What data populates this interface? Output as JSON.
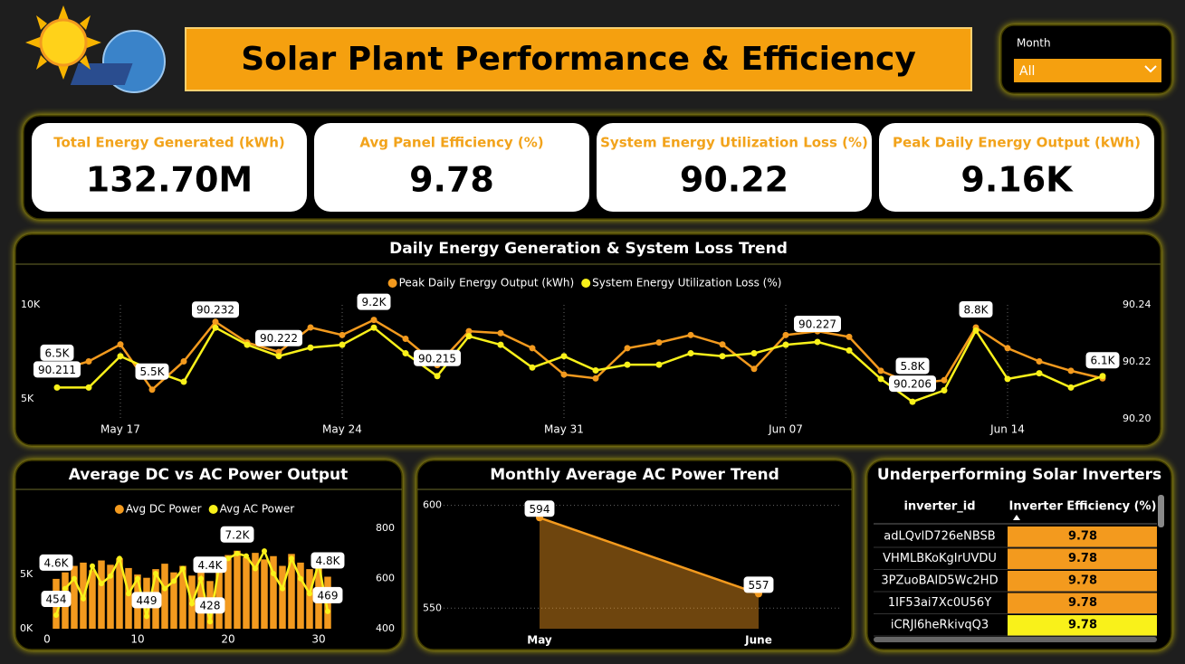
{
  "header": {
    "title": "Solar Plant Performance & Efficiency"
  },
  "filter": {
    "label": "Month",
    "value": "All"
  },
  "kpis": [
    {
      "label": "Total Energy Generated (kWh)",
      "value": "132.70M"
    },
    {
      "label": "Avg Panel Efficiency (%)",
      "value": "9.78"
    },
    {
      "label": "System Energy Utilization Loss (%)",
      "value": "90.22"
    },
    {
      "label": "Peak Daily Energy Output (kWh)",
      "value": "9.16K"
    }
  ],
  "chart_data": [
    {
      "type": "line",
      "title": "Daily Energy Generation & System Loss Trend",
      "categories": [
        "May 15",
        "May 16",
        "May 17",
        "May 18",
        "May 19",
        "May 20",
        "May 21",
        "May 22",
        "May 23",
        "May 24",
        "May 25",
        "May 26",
        "May 27",
        "May 28",
        "May 29",
        "May 30",
        "May 31",
        "Jun 01",
        "Jun 02",
        "Jun 03",
        "Jun 04",
        "Jun 05",
        "Jun 06",
        "Jun 07",
        "Jun 08",
        "Jun 09",
        "Jun 10",
        "Jun 11",
        "Jun 12",
        "Jun 13",
        "Jun 14",
        "Jun 15",
        "Jun 16",
        "Jun 17"
      ],
      "series": [
        {
          "name": "Peak Daily Energy Output (kWh)",
          "color": "#f39a1e",
          "values": [
            6500,
            7000,
            7900,
            5500,
            7000,
            9100,
            8000,
            7500,
            8800,
            8400,
            9200,
            8200,
            6800,
            8600,
            8500,
            7700,
            6300,
            6100,
            7700,
            8000,
            8400,
            7900,
            6600,
            8400,
            8600,
            8300,
            6500,
            5800,
            6000,
            8800,
            7700,
            7000,
            6500,
            6100
          ],
          "value_labels": [
            "6.5K",
            null,
            null,
            "5.5K",
            null,
            null,
            null,
            null,
            null,
            null,
            "9.2K",
            null,
            null,
            null,
            null,
            null,
            null,
            null,
            null,
            null,
            null,
            null,
            null,
            null,
            null,
            null,
            null,
            "5.8K",
            null,
            "8.8K",
            null,
            null,
            null,
            "6.1K"
          ]
        },
        {
          "name": "System Energy Utilization Loss (%)",
          "color": "#f9f11a",
          "axis": "y2",
          "values": [
            90.211,
            90.211,
            90.222,
            90.217,
            90.213,
            90.232,
            90.226,
            90.222,
            90.225,
            90.226,
            90.232,
            90.223,
            90.215,
            90.229,
            90.226,
            90.218,
            90.222,
            90.217,
            90.219,
            90.219,
            90.223,
            90.222,
            90.223,
            90.226,
            90.227,
            90.224,
            90.214,
            90.206,
            90.21,
            90.231,
            90.214,
            90.216,
            90.211,
            90.215
          ],
          "value_labels": [
            "90.211",
            null,
            null,
            null,
            null,
            "90.232",
            null,
            "90.222",
            null,
            null,
            null,
            null,
            "90.215",
            null,
            null,
            null,
            null,
            null,
            null,
            null,
            null,
            null,
            null,
            null,
            "90.227",
            null,
            null,
            "90.206",
            null,
            null,
            null,
            null,
            null,
            null
          ]
        }
      ],
      "ylim": [
        3950,
        10000
      ],
      "yticks": [
        {
          "value": 5000,
          "label": "5K"
        },
        {
          "value": 10000,
          "label": "10K"
        }
      ],
      "y2lim": [
        90.2,
        90.24
      ],
      "y2ticks": [
        {
          "value": 90.2,
          "label": "90.20"
        },
        90.22,
        90.24
      ],
      "grid": true,
      "legend": "top"
    },
    {
      "type": "combo",
      "title": "Average DC vs AC Power Output",
      "x": [
        1,
        2,
        3,
        4,
        5,
        6,
        7,
        8,
        9,
        10,
        11,
        12,
        13,
        14,
        15,
        16,
        17,
        18,
        19,
        20,
        21,
        22,
        23,
        24,
        25,
        26,
        27,
        28,
        29,
        30,
        31
      ],
      "series": [
        {
          "name": "Avg DC Power",
          "color": "#f39a1e",
          "type": "bar",
          "values": [
            4600,
            5200,
            5800,
            6100,
            5400,
            6300,
            5900,
            6500,
            5600,
            5000,
            4700,
            5500,
            6000,
            5200,
            5800,
            4900,
            6200,
            4400,
            5900,
            6800,
            7200,
            6600,
            7000,
            6400,
            6700,
            5800,
            6900,
            6100,
            5500,
            6300,
            4800
          ],
          "value_labels": [
            "4.6K",
            null,
            null,
            null,
            null,
            null,
            null,
            null,
            null,
            null,
            null,
            null,
            null,
            null,
            null,
            null,
            null,
            "4.4K",
            null,
            null,
            "7.2K",
            null,
            null,
            null,
            null,
            null,
            null,
            null,
            null,
            null,
            "4.8K"
          ]
        },
        {
          "name": "Avg AC Power",
          "color": "#f9f11a",
          "type": "line",
          "axis": "y2",
          "values": [
            454,
            560,
            600,
            520,
            650,
            580,
            610,
            680,
            540,
            600,
            449,
            620,
            560,
            590,
            640,
            500,
            600,
            428,
            650,
            680,
            700,
            690,
            640,
            710,
            620,
            560,
            680,
            600,
            540,
            660,
            469
          ],
          "value_labels": [
            "454",
            null,
            null,
            null,
            null,
            null,
            null,
            null,
            null,
            null,
            "449",
            null,
            null,
            null,
            null,
            null,
            null,
            "428",
            null,
            null,
            null,
            null,
            null,
            null,
            null,
            null,
            null,
            null,
            null,
            null,
            "469"
          ]
        }
      ],
      "xlim": [
        0,
        32
      ],
      "xticks": [
        0,
        10,
        20,
        30
      ],
      "ylim": [
        0,
        9600
      ],
      "yticks": [
        {
          "value": 0,
          "label": "0K"
        },
        {
          "value": 5000,
          "label": "5K"
        }
      ],
      "y2lim": [
        400,
        815
      ],
      "y2ticks": [
        400,
        600,
        800
      ],
      "legend": "top"
    },
    {
      "type": "area",
      "title": "Monthly Average AC Power Trend",
      "categories": [
        "May",
        "June"
      ],
      "values": [
        594,
        557
      ],
      "color": "#f39a1e",
      "ylim": [
        540,
        606
      ],
      "yticks": [
        550,
        600
      ],
      "grid": true
    }
  ],
  "table": {
    "title": "Underperforming Solar Inverters",
    "columns": [
      "inverter_id",
      "Inverter Efficiency (%)"
    ],
    "rows": [
      [
        "adLQvlD726eNBSB",
        9.78
      ],
      [
        "VHMLBKoKgIrUVDU",
        9.78
      ],
      [
        "3PZuoBAID5Wc2HD",
        9.78
      ],
      [
        "1IF53ai7Xc0U56Y",
        9.78
      ],
      [
        "iCRJl6heRkivqQ3",
        9.78
      ]
    ],
    "row_colors": [
      "#f39a1e",
      "#f39a1e",
      "#f39a1e",
      "#f39a1e",
      "#f9f11a"
    ]
  }
}
